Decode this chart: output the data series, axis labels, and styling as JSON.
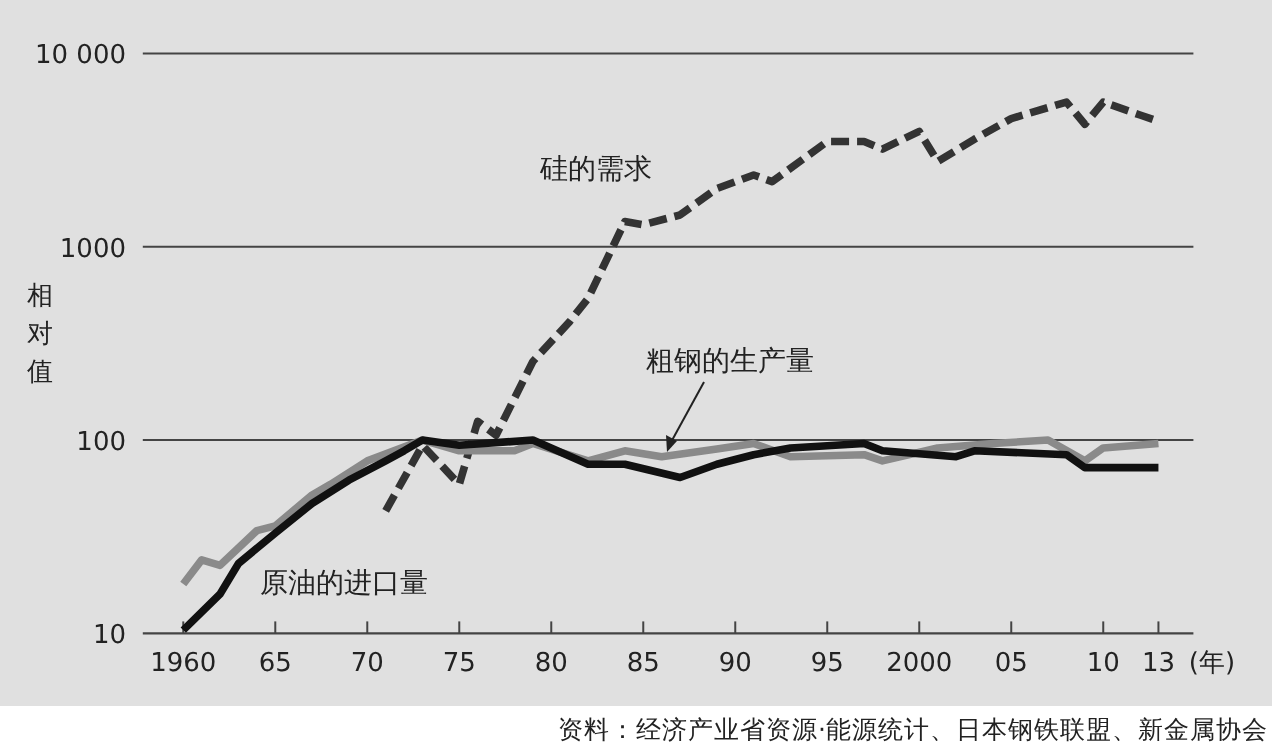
{
  "chart_data": {
    "type": "line",
    "ylabel": "相对值",
    "xlabel": "(年)",
    "log": "y",
    "grid": "y",
    "xlim": [
      1957.8,
      2014.9
    ],
    "ylim": [
      10,
      10000
    ],
    "xticks": [
      {
        "value": 1960,
        "label": "1960"
      },
      {
        "value": 1965,
        "label": "65"
      },
      {
        "value": 1970,
        "label": "70"
      },
      {
        "value": 1975,
        "label": "75"
      },
      {
        "value": 1980,
        "label": "80"
      },
      {
        "value": 1985,
        "label": "85"
      },
      {
        "value": 1990,
        "label": "90"
      },
      {
        "value": 1995,
        "label": "95"
      },
      {
        "value": 2000,
        "label": "2000"
      },
      {
        "value": 2005,
        "label": "05"
      },
      {
        "value": 2010,
        "label": "10"
      },
      {
        "value": 2013,
        "label": "13"
      }
    ],
    "yticks": [
      10,
      100,
      1000,
      {
        "value": 10000,
        "label": "10 000"
      }
    ],
    "series": [
      {
        "name": "硅的需求",
        "color": "#333333",
        "line_style": "dashed",
        "x": [
          1971,
          1973,
          1975,
          1976,
          1977,
          1979,
          1981,
          1982,
          1984,
          1985,
          1987,
          1989,
          1991,
          1992,
          1995,
          1997,
          1998,
          2000,
          2001,
          2003,
          2005,
          2008,
          2009,
          2010,
          2012,
          2013
        ],
        "values": [
          43,
          94,
          59,
          125,
          106,
          255,
          410,
          540,
          1350,
          1300,
          1460,
          2000,
          2350,
          2170,
          3500,
          3500,
          3200,
          3950,
          2760,
          3600,
          4600,
          5600,
          4300,
          5600,
          4800,
          4450
        ]
      },
      {
        "name": "粗钢的生产量",
        "color": "#8a8a8a",
        "line_style": "solid",
        "x": [
          1960,
          1961,
          1962,
          1964,
          1965,
          1967,
          1968,
          1970,
          1973,
          1975,
          1978,
          1979,
          1982,
          1984,
          1986,
          1989,
          1991,
          1993,
          1997,
          1998,
          2001,
          2004,
          2007,
          2009,
          2010,
          2013
        ],
        "values": [
          18,
          24,
          22.5,
          34,
          36,
          52,
          59,
          78,
          100,
          88,
          88,
          96,
          78,
          88,
          82,
          90,
          96,
          82,
          84,
          78,
          91,
          96,
          100,
          78,
          91,
          96
        ]
      },
      {
        "name": "原油的进口量",
        "color": "#111111",
        "line_style": "solid",
        "x": [
          1960,
          1962,
          1963,
          1965,
          1967,
          1969,
          1971,
          1972,
          1973,
          1975,
          1979,
          1982,
          1984,
          1987,
          1989,
          1991,
          1993,
          1997,
          1998,
          2002,
          2003,
          2008,
          2009,
          2011,
          2013
        ],
        "values": [
          10.4,
          16,
          23,
          33,
          47,
          62,
          78,
          88,
          100,
          94,
          100,
          75,
          75,
          64,
          75,
          84,
          91,
          96,
          88,
          82,
          88,
          84,
          72,
          72,
          72
        ]
      }
    ],
    "annotations": [
      "资料：经济产业省资源·能源统计、日本钢铁联盟、新金属协会"
    ]
  }
}
